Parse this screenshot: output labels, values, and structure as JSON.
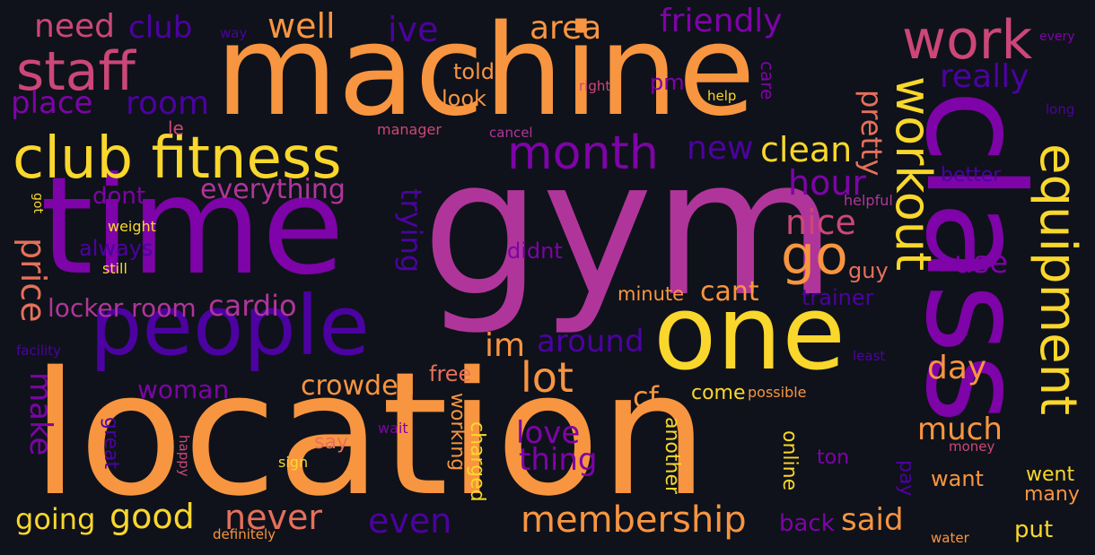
{
  "palette": {
    "background": "#0f121a",
    "yellow": "#f9d72c",
    "orange": "#f89540",
    "salmon": "#e6705b",
    "pink": "#cc4778",
    "magenta": "#b0359a",
    "purple": "#7e03a8",
    "indigo": "#4c02a1",
    "deep_indigo": "#2a0594"
  },
  "words": [
    {
      "text": "gym",
      "color": "#b0359a"
    },
    {
      "text": "location",
      "color": "#f89540"
    },
    {
      "text": "machine",
      "color": "#f89540"
    },
    {
      "text": "time",
      "color": "#7e03a8"
    },
    {
      "text": "class",
      "color": "#7e03a8"
    },
    {
      "text": "one",
      "color": "#f9d72c"
    },
    {
      "text": "people",
      "color": "#4c02a1"
    },
    {
      "text": "club fitness",
      "color": "#f9d72c"
    },
    {
      "text": "staff",
      "color": "#cc4778"
    },
    {
      "text": "work",
      "color": "#cc4778"
    },
    {
      "text": "month",
      "color": "#7e03a8"
    },
    {
      "text": "equipment",
      "color": "#f9d72c"
    },
    {
      "text": "workout",
      "color": "#f9d72c"
    },
    {
      "text": "go",
      "color": "#f89540"
    },
    {
      "text": "membership",
      "color": "#f89540"
    },
    {
      "text": "need",
      "color": "#cc4778"
    },
    {
      "text": "club",
      "color": "#4c02a1"
    },
    {
      "text": "well",
      "color": "#f89540"
    },
    {
      "text": "ive",
      "color": "#4c02a1"
    },
    {
      "text": "area",
      "color": "#f89540"
    },
    {
      "text": "friendly",
      "color": "#7e03a8"
    },
    {
      "text": "really",
      "color": "#4c02a1"
    },
    {
      "text": "place",
      "color": "#7e03a8"
    },
    {
      "text": "room",
      "color": "#4c02a1"
    },
    {
      "text": "told",
      "color": "#f89540"
    },
    {
      "text": "look",
      "color": "#f89540"
    },
    {
      "text": "pm",
      "color": "#7e03a8"
    },
    {
      "text": "pretty",
      "color": "#e6705b"
    },
    {
      "text": "right",
      "color": "#cc4778"
    },
    {
      "text": "help",
      "color": "#f9d72c"
    },
    {
      "text": "care",
      "color": "#7e03a8"
    },
    {
      "text": "every",
      "color": "#7e03a8"
    },
    {
      "text": "way",
      "color": "#4c02a1"
    },
    {
      "text": "long",
      "color": "#4c02a1"
    },
    {
      "text": "le",
      "color": "#cc4778"
    },
    {
      "text": "manager",
      "color": "#cc4778"
    },
    {
      "text": "cancel",
      "color": "#b0359a"
    },
    {
      "text": "clean",
      "color": "#f9d72c"
    },
    {
      "text": "new",
      "color": "#4c02a1"
    },
    {
      "text": "hour",
      "color": "#7e03a8"
    },
    {
      "text": "nice",
      "color": "#cc4778"
    },
    {
      "text": "everything",
      "color": "#b0359a"
    },
    {
      "text": "dont",
      "color": "#7e03a8"
    },
    {
      "text": "got",
      "color": "#f9d72c"
    },
    {
      "text": "weight",
      "color": "#f9d72c"
    },
    {
      "text": "always",
      "color": "#4c02a1"
    },
    {
      "text": "still",
      "color": "#f9d72c"
    },
    {
      "text": "price",
      "color": "#e6705b"
    },
    {
      "text": "trying",
      "color": "#4c02a1"
    },
    {
      "text": "didnt",
      "color": "#7e03a8"
    },
    {
      "text": "helpful",
      "color": "#b0359a"
    },
    {
      "text": "better",
      "color": "#4c02a1"
    },
    {
      "text": "use",
      "color": "#7e03a8"
    },
    {
      "text": "guy",
      "color": "#e6705b"
    },
    {
      "text": "trainer",
      "color": "#4c02a1"
    },
    {
      "text": "minute",
      "color": "#f89540"
    },
    {
      "text": "cant",
      "color": "#f89540"
    },
    {
      "text": "locker room",
      "color": "#b0359a"
    },
    {
      "text": "cardio",
      "color": "#b0359a"
    },
    {
      "text": "im",
      "color": "#f89540"
    },
    {
      "text": "around",
      "color": "#4c02a1"
    },
    {
      "text": "facility",
      "color": "#4c02a1"
    },
    {
      "text": "least",
      "color": "#4c02a1"
    },
    {
      "text": "day",
      "color": "#f89540"
    },
    {
      "text": "lot",
      "color": "#f89540"
    },
    {
      "text": "free",
      "color": "#e6705b"
    },
    {
      "text": "make",
      "color": "#7e03a8"
    },
    {
      "text": "woman",
      "color": "#7e03a8"
    },
    {
      "text": "crowded",
      "color": "#f89540"
    },
    {
      "text": "cf",
      "color": "#f89540"
    },
    {
      "text": "come",
      "color": "#f9d72c"
    },
    {
      "text": "possible",
      "color": "#f89540"
    },
    {
      "text": "love",
      "color": "#7e03a8"
    },
    {
      "text": "thing",
      "color": "#7e03a8"
    },
    {
      "text": "much",
      "color": "#f89540"
    },
    {
      "text": "money",
      "color": "#cc4778"
    },
    {
      "text": "great",
      "color": "#4c02a1"
    },
    {
      "text": "happy",
      "color": "#cc4778"
    },
    {
      "text": "wait",
      "color": "#7e03a8"
    },
    {
      "text": "say",
      "color": "#e6705b"
    },
    {
      "text": "sign",
      "color": "#f9d72c"
    },
    {
      "text": "working",
      "color": "#f89540"
    },
    {
      "text": "charged",
      "color": "#f9d72c"
    },
    {
      "text": "another",
      "color": "#f9d72c"
    },
    {
      "text": "online",
      "color": "#f9d72c"
    },
    {
      "text": "ton",
      "color": "#7e03a8"
    },
    {
      "text": "pay",
      "color": "#4c02a1"
    },
    {
      "text": "want",
      "color": "#f89540"
    },
    {
      "text": "went",
      "color": "#f9d72c"
    },
    {
      "text": "many",
      "color": "#f89540"
    },
    {
      "text": "going",
      "color": "#f9d72c"
    },
    {
      "text": "good",
      "color": "#f9d72c"
    },
    {
      "text": "never",
      "color": "#e6705b"
    },
    {
      "text": "even",
      "color": "#4c02a1"
    },
    {
      "text": "said",
      "color": "#f89540"
    },
    {
      "text": "back",
      "color": "#7e03a8"
    },
    {
      "text": "definitely",
      "color": "#f89540"
    },
    {
      "text": "water",
      "color": "#f89540"
    },
    {
      "text": "put",
      "color": "#f9d72c"
    }
  ]
}
